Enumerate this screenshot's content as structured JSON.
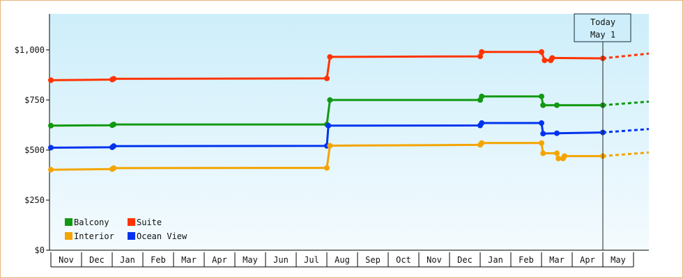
{
  "chart_data": {
    "type": "line",
    "title": "",
    "xlabel": "",
    "ylabel": "",
    "y_ticks": [
      "$0",
      "$250",
      "$500",
      "$750",
      "$1,000"
    ],
    "y_tick_values": [
      0,
      250,
      500,
      750,
      1000
    ],
    "ylim": [
      0,
      1180
    ],
    "x_categories": [
      "Nov",
      "Dec",
      "Jan",
      "Feb",
      "Mar",
      "Apr",
      "May",
      "Jun",
      "Jul",
      "Aug",
      "Sep",
      "Oct",
      "Nov",
      "Dec",
      "Jan",
      "Feb",
      "Mar",
      "Apr",
      "May"
    ],
    "xlim": [
      0,
      19
    ],
    "today_marker": {
      "line1": "Today",
      "line2": "May 1",
      "x": 18.0
    },
    "legend": {
      "placement": "bottom-left"
    },
    "grid": false,
    "series": [
      {
        "name": "Suite",
        "color": "#ff3300",
        "points": [
          [
            0.0,
            849
          ],
          [
            2.0,
            852
          ],
          [
            2.05,
            856
          ],
          [
            9.0,
            858
          ],
          [
            9.1,
            965
          ],
          [
            14.0,
            968
          ],
          [
            14.05,
            990
          ],
          [
            16.0,
            990
          ],
          [
            16.1,
            948
          ],
          [
            16.3,
            948
          ],
          [
            16.35,
            960
          ],
          [
            18.0,
            958
          ]
        ],
        "forecast": [
          [
            18.0,
            958
          ],
          [
            19.6,
            982
          ]
        ]
      },
      {
        "name": "Balcony",
        "color": "#119911",
        "points": [
          [
            0.0,
            622
          ],
          [
            2.0,
            624
          ],
          [
            2.05,
            628
          ],
          [
            9.0,
            628
          ],
          [
            9.1,
            750
          ],
          [
            14.0,
            750
          ],
          [
            14.05,
            768
          ],
          [
            16.0,
            768
          ],
          [
            16.05,
            724
          ],
          [
            16.5,
            724
          ],
          [
            18.0,
            724
          ]
        ],
        "forecast": [
          [
            18.0,
            724
          ],
          [
            19.6,
            742
          ]
        ]
      },
      {
        "name": "Ocean View",
        "color": "#0033ee",
        "points": [
          [
            0.0,
            512
          ],
          [
            2.0,
            514
          ],
          [
            2.05,
            520
          ],
          [
            9.0,
            521
          ],
          [
            9.05,
            622
          ],
          [
            14.0,
            623
          ],
          [
            14.05,
            635
          ],
          [
            16.0,
            635
          ],
          [
            16.05,
            582
          ],
          [
            16.5,
            584
          ],
          [
            18.0,
            588
          ]
        ],
        "forecast": [
          [
            18.0,
            588
          ],
          [
            19.6,
            605
          ]
        ]
      },
      {
        "name": "Interior",
        "color": "#f4a400",
        "points": [
          [
            0.0,
            402
          ],
          [
            2.0,
            405
          ],
          [
            2.05,
            410
          ],
          [
            9.0,
            411
          ],
          [
            9.1,
            522
          ],
          [
            14.0,
            526
          ],
          [
            14.05,
            535
          ],
          [
            16.0,
            535
          ],
          [
            16.05,
            484
          ],
          [
            16.5,
            484
          ],
          [
            16.55,
            458
          ],
          [
            16.7,
            458
          ],
          [
            16.75,
            470
          ],
          [
            18.0,
            470
          ]
        ],
        "forecast": [
          [
            18.0,
            470
          ],
          [
            19.6,
            488
          ]
        ]
      }
    ]
  }
}
